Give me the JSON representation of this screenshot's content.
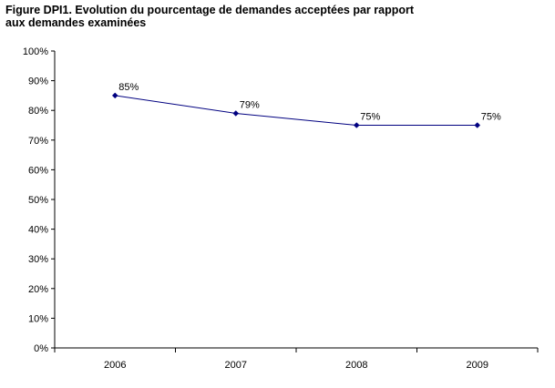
{
  "chart_data": {
    "type": "line",
    "title_lines": [
      "Figure DPI1. Evolution du pourcentage de demandes acceptées par rapport",
      "aux demandes examinées"
    ],
    "categories": [
      "2006",
      "2007",
      "2008",
      "2009"
    ],
    "series": [
      {
        "values": [
          85,
          79,
          75,
          75
        ],
        "data_labels": [
          "85%",
          "79%",
          "75%",
          "75%"
        ],
        "color": "#000080"
      }
    ],
    "ylim": [
      0,
      100
    ],
    "y_ticks": [
      0,
      10,
      20,
      30,
      40,
      50,
      60,
      70,
      80,
      90,
      100
    ],
    "y_tick_labels": [
      "0%",
      "10%",
      "20%",
      "30%",
      "40%",
      "50%",
      "60%",
      "70%",
      "80%",
      "90%",
      "100%"
    ],
    "grid": false,
    "legend": "none",
    "xlabel": "",
    "ylabel": ""
  }
}
